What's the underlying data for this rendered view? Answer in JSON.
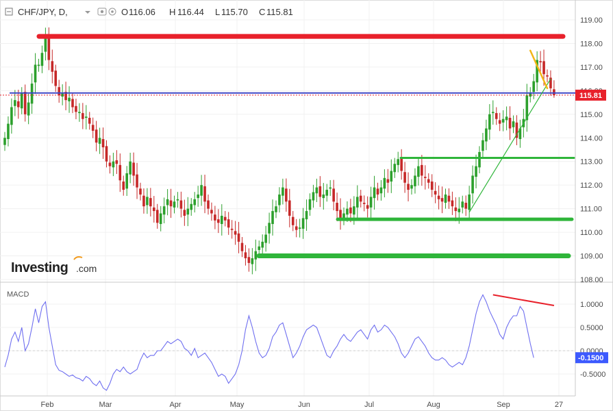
{
  "header": {
    "symbol": "CHF/JPY, D,",
    "open_label": "O",
    "open_value": "116.06",
    "high_label": "H",
    "high_value": "116.44",
    "low_label": "L",
    "low_value": "115.70",
    "close_label": "C",
    "close_value": "115.81"
  },
  "logo": {
    "text": "Investing",
    "suffix": ".com"
  },
  "colors": {
    "up": "#2ca02c",
    "down": "#c62828",
    "macd_line": "#6f6ff0",
    "resistance": "#e8212b",
    "support": "#2fb53a",
    "pivot": "#3d47c6",
    "channel": "#f2b616",
    "price_tag": "#e8212b",
    "macd_tag": "#3d5afe"
  },
  "chart_data": [
    {
      "type": "candlestick",
      "title": "CHF/JPY, D,",
      "x_tick_labels": [
        "Feb",
        "Mar",
        "Apr",
        "May",
        "Jun",
        "Jul",
        "Aug",
        "Sep",
        "27"
      ],
      "y_tick_labels": [
        "108.00",
        "109.00",
        "110.00",
        "111.00",
        "112.00",
        "113.00",
        "114.00",
        "115.00",
        "116.00",
        "117.00",
        "118.00",
        "119.00"
      ],
      "ylim": [
        107.95,
        119.25
      ],
      "last_price": "115.81",
      "ohlc_summary": {
        "open": 116.06,
        "high": 116.44,
        "low": 115.7,
        "close": 115.81
      },
      "closes": [
        114.0,
        114.6,
        115.3,
        115.6,
        115.3,
        115.9,
        115.0,
        115.5,
        116.3,
        117.1,
        117.1,
        117.6,
        118.3,
        117.3,
        116.8,
        116.2,
        115.8,
        115.9,
        115.6,
        115.7,
        115.3,
        115.1,
        115.1,
        114.8,
        114.9,
        114.6,
        114.3,
        113.8,
        114.0,
        113.6,
        113.0,
        112.8,
        113.0,
        112.9,
        112.2,
        111.8,
        112.5,
        113.0,
        112.4,
        111.9,
        111.6,
        111.1,
        111.5,
        111.1,
        110.9,
        110.4,
        110.8,
        111.1,
        111.4,
        111.1,
        111.3,
        111.4,
        111.0,
        110.7,
        111.0,
        111.2,
        111.4,
        111.6,
        112.0,
        111.3,
        111.0,
        110.8,
        110.5,
        110.4,
        110.7,
        110.5,
        110.2,
        110.1,
        109.9,
        109.6,
        109.2,
        108.9,
        108.7,
        108.9,
        109.2,
        109.4,
        109.6,
        109.9,
        110.4,
        110.9,
        111.1,
        111.6,
        111.9,
        111.3,
        110.7,
        110.3,
        110.1,
        110.2,
        110.6,
        110.9,
        111.4,
        111.7,
        111.9,
        111.5,
        111.6,
        111.8,
        111.9,
        111.3,
        110.9,
        110.6,
        110.8,
        111.0,
        110.8,
        111.1,
        111.5,
        111.3,
        111.2,
        111.0,
        111.5,
        111.9,
        111.6,
        111.9,
        112.3,
        112.1,
        112.6,
        112.9,
        113.1,
        112.6,
        112.1,
        111.8,
        112.0,
        112.4,
        112.8,
        112.4,
        112.3,
        112.1,
        111.8,
        111.6,
        111.4,
        111.3,
        111.6,
        111.3,
        111.1,
        110.9,
        111.0,
        111.3,
        111.0,
        111.6,
        112.4,
        112.8,
        113.4,
        113.9,
        114.4,
        115.0,
        115.1,
        114.8,
        114.6,
        114.8,
        114.9,
        114.4,
        114.7,
        114.0,
        114.4,
        114.8,
        115.8,
        115.9,
        116.4,
        117.3,
        117.2,
        116.7,
        116.6,
        116.1,
        115.81
      ],
      "macd": {
        "label": "MACD",
        "y_tick_labels": [
          "1.0000",
          "0.5000",
          "0.0000",
          "-0.5000"
        ],
        "ylim": [
          -1.05,
          1.25
        ],
        "last_value": "-0.1500",
        "values": [
          -0.35,
          -0.1,
          0.25,
          0.4,
          0.2,
          0.5,
          0.0,
          0.15,
          0.5,
          0.9,
          0.6,
          0.95,
          1.05,
          0.5,
          0.1,
          -0.3,
          -0.42,
          -0.45,
          -0.5,
          -0.55,
          -0.52,
          -0.58,
          -0.6,
          -0.65,
          -0.55,
          -0.6,
          -0.7,
          -0.75,
          -0.65,
          -0.8,
          -0.85,
          -0.7,
          -0.5,
          -0.4,
          -0.45,
          -0.35,
          -0.45,
          -0.5,
          -0.45,
          -0.4,
          -0.2,
          -0.05,
          -0.15,
          -0.1,
          -0.1,
          0.0,
          0.0,
          0.1,
          0.2,
          0.15,
          0.2,
          0.25,
          0.2,
          0.05,
          0.0,
          -0.1,
          0.05,
          -0.15,
          -0.1,
          -0.05,
          -0.15,
          -0.25,
          -0.4,
          -0.55,
          -0.5,
          -0.55,
          -0.7,
          -0.6,
          -0.5,
          -0.3,
          0.0,
          0.45,
          0.75,
          0.5,
          0.2,
          -0.05,
          -0.15,
          -0.1,
          0.05,
          0.3,
          0.4,
          0.55,
          0.6,
          0.35,
          0.1,
          -0.15,
          -0.05,
          0.1,
          0.3,
          0.45,
          0.5,
          0.55,
          0.5,
          0.3,
          0.1,
          -0.1,
          -0.15,
          0.0,
          0.1,
          0.25,
          0.35,
          0.25,
          0.2,
          0.3,
          0.4,
          0.45,
          0.35,
          0.25,
          0.45,
          0.55,
          0.4,
          0.45,
          0.55,
          0.5,
          0.4,
          0.3,
          0.15,
          -0.05,
          -0.15,
          -0.05,
          0.1,
          0.25,
          0.3,
          0.2,
          0.1,
          -0.05,
          -0.15,
          -0.2,
          -0.2,
          -0.15,
          -0.2,
          -0.3,
          -0.35,
          -0.3,
          -0.25,
          -0.3,
          -0.15,
          0.1,
          0.45,
          0.8,
          1.05,
          1.2,
          1.05,
          0.85,
          0.7,
          0.55,
          0.35,
          0.25,
          0.5,
          0.65,
          0.75,
          0.75,
          0.95,
          0.85,
          0.5,
          0.15,
          -0.15
        ]
      }
    }
  ],
  "overlays": {
    "resistance_level": 118.3,
    "pivot_level": 115.9,
    "support_levels": [
      113.15,
      110.55,
      109.0
    ],
    "trendline": [
      [
        137,
        110.85
      ],
      [
        161,
        116.5
      ]
    ],
    "channel": [
      [
        155,
        117.7
      ],
      [
        160,
        116.1
      ]
    ],
    "macd_divergence": [
      [
        144,
        1.2
      ],
      [
        162,
        0.97
      ]
    ]
  }
}
